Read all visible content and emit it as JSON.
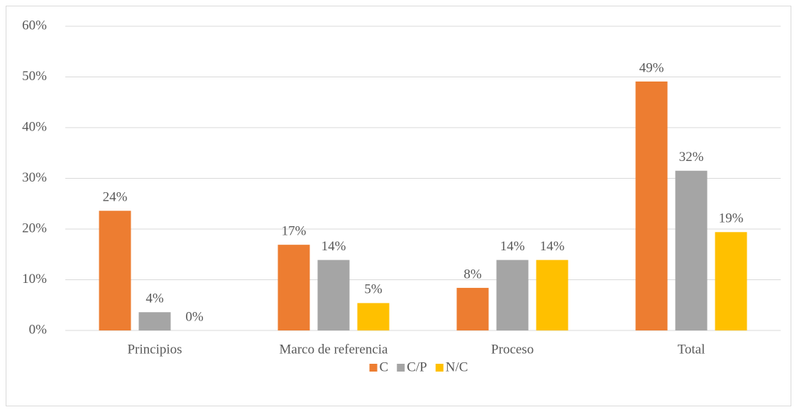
{
  "chart_data": {
    "type": "bar",
    "categories": [
      "Principios",
      "Marco de referencia",
      "Proceso",
      "Total"
    ],
    "series": [
      {
        "name": "C",
        "color": "#ed7d31",
        "values": [
          23.6,
          16.9,
          8.4,
          49.1
        ],
        "value_labels": [
          "24%",
          "17%",
          "8%",
          "49%"
        ]
      },
      {
        "name": "C/P",
        "color": "#a5a5a5",
        "values": [
          3.6,
          13.9,
          13.9,
          31.5
        ],
        "value_labels": [
          "4%",
          "14%",
          "14%",
          "32%"
        ]
      },
      {
        "name": "N/C",
        "color": "#ffc000",
        "values": [
          0,
          5.4,
          13.9,
          19.4
        ],
        "value_labels": [
          "0%",
          "5%",
          "14%",
          "19%"
        ]
      }
    ],
    "ylim": [
      0,
      60
    ],
    "yticks": [
      {
        "value": 0,
        "label": "0%"
      },
      {
        "value": 10,
        "label": "10%"
      },
      {
        "value": 20,
        "label": "20%"
      },
      {
        "value": 30,
        "label": "30%"
      },
      {
        "value": 40,
        "label": "40%"
      },
      {
        "value": 50,
        "label": "50%"
      },
      {
        "value": 60,
        "label": "60%"
      }
    ],
    "grid": true,
    "legend": "bottom"
  }
}
